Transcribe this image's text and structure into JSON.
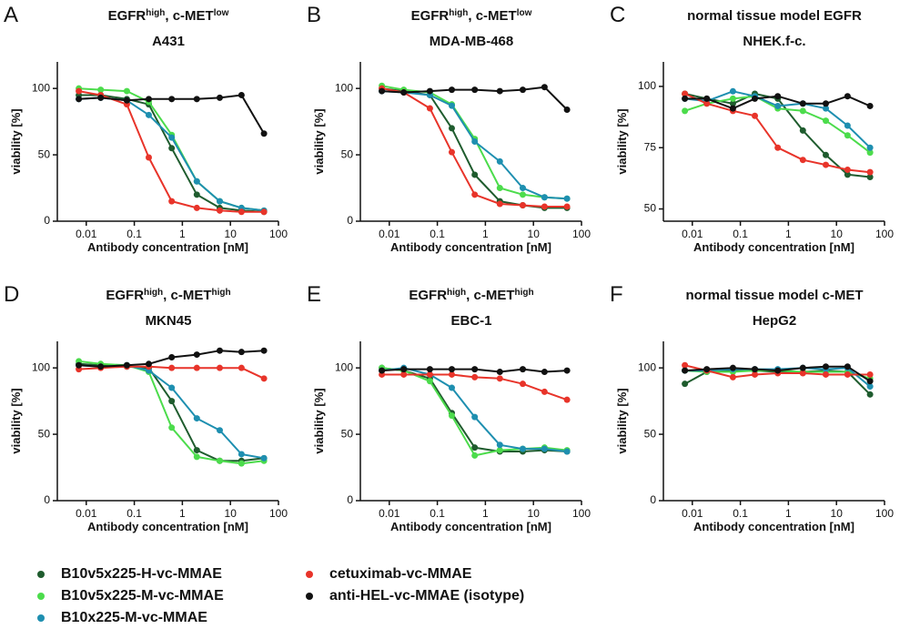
{
  "legend": [
    {
      "name": "B10v5x225-H-vc-MMAE",
      "color": "#1f5c2e"
    },
    {
      "name": "B10v5x225-M-vc-MMAE",
      "color": "#4cdc4c"
    },
    {
      "name": "B10x225-M-vc-MMAE",
      "color": "#1e8fb0"
    },
    {
      "name": "cetuximab-vc-MMAE",
      "color": "#e8342a"
    },
    {
      "name": "anti-HEL-vc-MMAE (isotype)",
      "color": "#111111"
    }
  ],
  "chart_data": [
    {
      "type": "line",
      "panel": "A",
      "title": [
        "EGFR",
        "high",
        ", c-MET",
        "low"
      ],
      "subtitle": "A431",
      "xlabel": "Antibody concentration [nM]",
      "ylabel": "viability [%]",
      "log_x": true,
      "x": [
        0.007,
        0.02,
        0.07,
        0.2,
        0.6,
        2,
        6,
        17,
        50
      ],
      "xlim": [
        0.0025,
        100
      ],
      "xticks": [
        0.01,
        0.1,
        1,
        10,
        100
      ],
      "ylim": [
        0,
        120
      ],
      "yticks": [
        0,
        50,
        100
      ],
      "series": [
        {
          "values": [
            95,
            95,
            92,
            88,
            55,
            20,
            10,
            8,
            7
          ]
        },
        {
          "values": [
            100,
            99,
            98,
            90,
            65,
            30,
            15,
            10,
            8
          ]
        },
        {
          "values": [
            92,
            93,
            91,
            80,
            63,
            30,
            15,
            10,
            8
          ]
        },
        {
          "values": [
            98,
            95,
            88,
            48,
            15,
            10,
            8,
            7,
            7
          ]
        },
        {
          "values": [
            92,
            93,
            91,
            92,
            92,
            92,
            93,
            95,
            66
          ]
        }
      ]
    },
    {
      "type": "line",
      "panel": "B",
      "title": [
        "EGFR",
        "high",
        ", c-MET",
        "low"
      ],
      "subtitle": "MDA-MB-468",
      "xlabel": "Antibody concentration [nM]",
      "ylabel": "viability [%]",
      "log_x": true,
      "x": [
        0.007,
        0.02,
        0.07,
        0.2,
        0.6,
        2,
        6,
        17,
        50
      ],
      "xlim": [
        0.0025,
        100
      ],
      "xticks": [
        0.01,
        0.1,
        1,
        10,
        100
      ],
      "ylim": [
        0,
        120
      ],
      "yticks": [
        0,
        50,
        100
      ],
      "series": [
        {
          "values": [
            100,
            98,
            95,
            70,
            35,
            15,
            12,
            10,
            10
          ]
        },
        {
          "values": [
            102,
            99,
            97,
            88,
            62,
            25,
            20,
            18,
            17
          ]
        },
        {
          "values": [
            98,
            97,
            95,
            87,
            60,
            45,
            25,
            18,
            17
          ]
        },
        {
          "values": [
            100,
            97,
            85,
            52,
            20,
            13,
            12,
            11,
            11
          ]
        },
        {
          "values": [
            98,
            97,
            98,
            99,
            99,
            98,
            99,
            101,
            84
          ]
        }
      ]
    },
    {
      "type": "line",
      "panel": "C",
      "title": [
        "normal tissue model EGFR"
      ],
      "subtitle": "NHEK.f-c.",
      "xlabel": "Antibody concentration [nM]",
      "ylabel": "viability [%]",
      "log_x": true,
      "x": [
        0.007,
        0.02,
        0.07,
        0.2,
        0.6,
        2,
        6,
        17,
        50
      ],
      "xlim": [
        0.0025,
        100
      ],
      "xticks": [
        0.01,
        0.1,
        1,
        10,
        100
      ],
      "ylim": [
        45,
        110
      ],
      "yticks": [
        50,
        75,
        100
      ],
      "series": [
        {
          "values": [
            97,
            95,
            93,
            97,
            95,
            82,
            72,
            64,
            63
          ]
        },
        {
          "values": [
            90,
            93,
            95,
            96,
            91,
            90,
            86,
            80,
            73
          ]
        },
        {
          "values": [
            95,
            94,
            98,
            96,
            92,
            93,
            91,
            84,
            75
          ]
        },
        {
          "values": [
            97,
            93,
            90,
            88,
            75,
            70,
            68,
            66,
            65
          ]
        },
        {
          "values": [
            95,
            95,
            91,
            95,
            96,
            93,
            93,
            96,
            92
          ]
        }
      ]
    },
    {
      "type": "line",
      "panel": "D",
      "title": [
        "EGFR",
        "high",
        ", c-MET",
        "high"
      ],
      "subtitle": "MKN45",
      "xlabel": "Antibody concentration [nM]",
      "ylabel": "viability [%]",
      "log_x": true,
      "x": [
        0.007,
        0.02,
        0.07,
        0.2,
        0.6,
        2,
        6,
        17,
        50
      ],
      "xlim": [
        0.0025,
        100
      ],
      "xticks": [
        0.01,
        0.1,
        1,
        10,
        100
      ],
      "ylim": [
        0,
        120
      ],
      "yticks": [
        0,
        50,
        100
      ],
      "series": [
        {
          "values": [
            103,
            102,
            101,
            100,
            75,
            38,
            30,
            30,
            32
          ]
        },
        {
          "values": [
            105,
            103,
            102,
            97,
            55,
            33,
            30,
            28,
            30
          ]
        },
        {
          "values": [
            102,
            101,
            102,
            98,
            85,
            62,
            53,
            35,
            32
          ]
        },
        {
          "values": [
            99,
            100,
            101,
            101,
            100,
            100,
            100,
            100,
            92
          ]
        },
        {
          "values": [
            102,
            101,
            102,
            103,
            108,
            110,
            113,
            112,
            113
          ]
        }
      ]
    },
    {
      "type": "line",
      "panel": "E",
      "title": [
        "EGFR",
        "high",
        ", c-MET",
        "high"
      ],
      "subtitle": "EBC-1",
      "xlabel": "Antibody concentration [nM]",
      "ylabel": "viability [%]",
      "log_x": true,
      "x": [
        0.007,
        0.02,
        0.07,
        0.2,
        0.6,
        2,
        6,
        17,
        50
      ],
      "xlim": [
        0.0025,
        100
      ],
      "xticks": [
        0.01,
        0.1,
        1,
        10,
        100
      ],
      "ylim": [
        0,
        120
      ],
      "yticks": [
        0,
        50,
        100
      ],
      "series": [
        {
          "values": [
            100,
            98,
            92,
            66,
            40,
            37,
            37,
            38,
            37
          ]
        },
        {
          "values": [
            100,
            98,
            90,
            64,
            34,
            38,
            39,
            40,
            38
          ]
        },
        {
          "values": [
            98,
            100,
            95,
            85,
            63,
            42,
            39,
            39,
            37
          ]
        },
        {
          "values": [
            95,
            95,
            95,
            95,
            93,
            92,
            88,
            82,
            76
          ]
        },
        {
          "values": [
            98,
            99,
            99,
            99,
            99,
            97,
            99,
            97,
            98
          ]
        }
      ]
    },
    {
      "type": "line",
      "panel": "F",
      "title": [
        "normal tissue model c-MET"
      ],
      "subtitle": "HepG2",
      "xlabel": "Antibody concentration [nM]",
      "ylabel": "viability [%]",
      "log_x": true,
      "x": [
        0.007,
        0.02,
        0.07,
        0.2,
        0.6,
        2,
        6,
        17,
        50
      ],
      "xlim": [
        0.0025,
        100
      ],
      "xticks": [
        0.01,
        0.1,
        1,
        10,
        100
      ],
      "ylim": [
        0,
        120
      ],
      "yticks": [
        0,
        50,
        100
      ],
      "series": [
        {
          "values": [
            88,
            97,
            98,
            98,
            97,
            97,
            98,
            97,
            80
          ]
        },
        {
          "values": [
            98,
            97,
            97,
            98,
            98,
            97,
            97,
            97,
            92
          ]
        },
        {
          "values": [
            98,
            98,
            99,
            99,
            99,
            100,
            99,
            100,
            86
          ]
        },
        {
          "values": [
            102,
            98,
            93,
            95,
            96,
            96,
            95,
            95,
            95
          ]
        },
        {
          "values": [
            98,
            99,
            100,
            99,
            98,
            100,
            101,
            101,
            90
          ]
        }
      ]
    }
  ]
}
